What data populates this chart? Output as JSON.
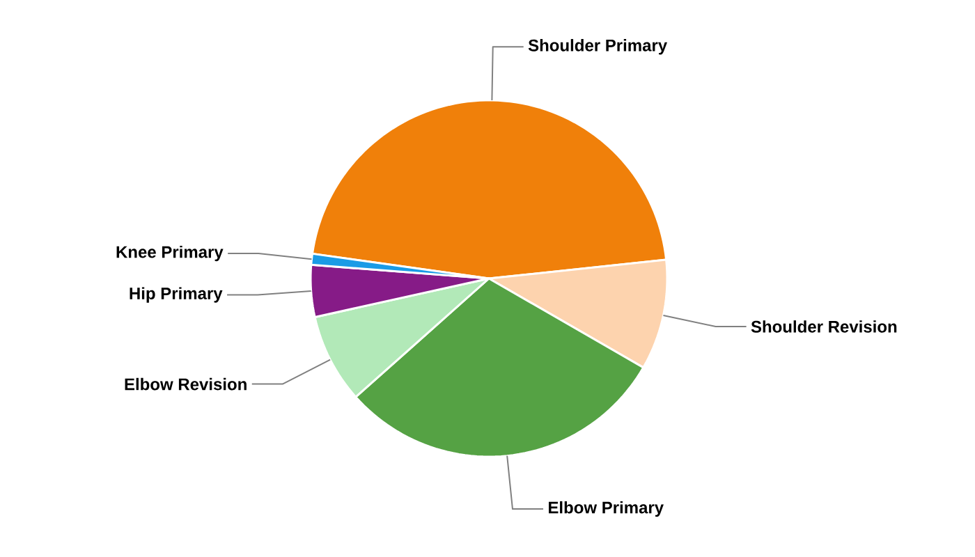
{
  "chart_data": {
    "type": "pie",
    "categories": [
      "Shoulder Primary",
      "Shoulder Revision",
      "Elbow Primary",
      "Elbow Revision",
      "Hip Primary",
      "Knee Primary"
    ],
    "values": [
      46.1,
      10,
      30.1,
      8.1,
      4.7,
      1
    ],
    "colors": [
      "#f0800a",
      "#fdd3ae",
      "#55a244",
      "#b2e9b8",
      "#861b87",
      "#1a9be6"
    ]
  }
}
